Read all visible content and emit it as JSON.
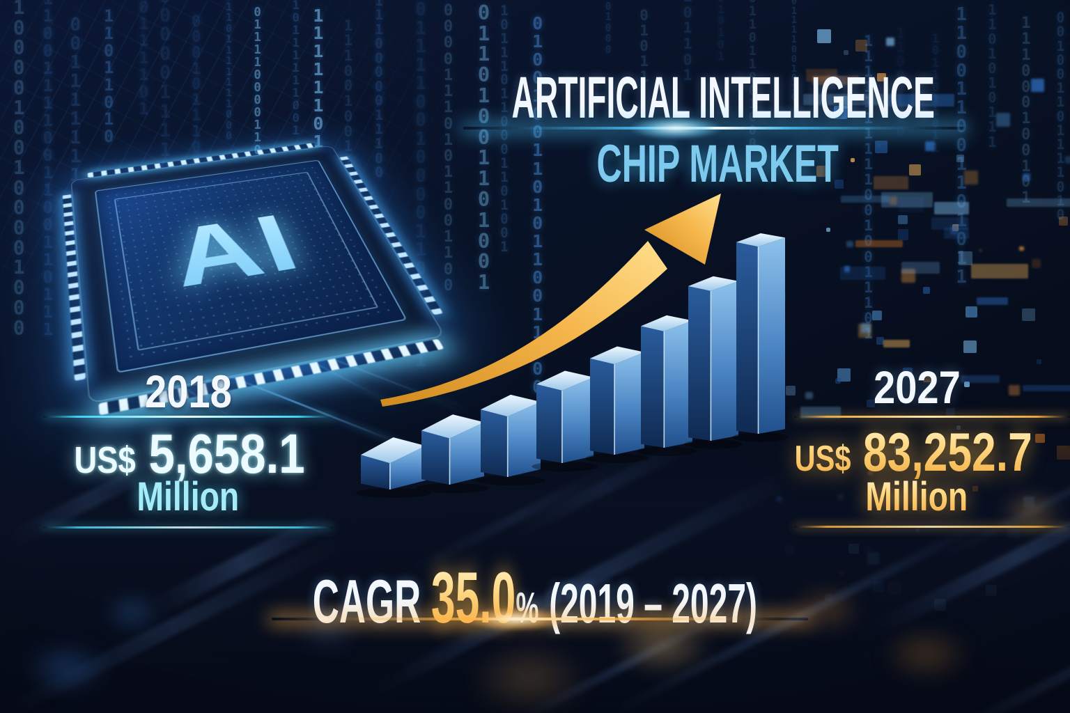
{
  "title": {
    "line1": "ARTIFICIAL INTELLIGENCE",
    "line2": "CHIP MARKET"
  },
  "start": {
    "year": "2018",
    "currency": "US$",
    "value": "5,658.1",
    "unit": "Million"
  },
  "end": {
    "year": "2027",
    "currency": "US$",
    "value": "83,252.7",
    "unit": "Million"
  },
  "cagr": {
    "label": "CAGR",
    "value": "35.0",
    "percent": "%",
    "period": "(2019 – 2027)"
  },
  "chip": {
    "label": "AI"
  },
  "background": {
    "binary_digits": "01"
  },
  "colors": {
    "background_navy": "#081225",
    "title_white": "#f3f8fe",
    "title_cyan": "#7ec9ee",
    "stat_cyan": "#a6ecf8",
    "stat_gold": "#ffd985",
    "arrow_gold": "#f2b04a",
    "bar_front_top": "#8fc6ee",
    "bar_front_bottom": "#1d4276",
    "bar_side_dark": "#0f2a52",
    "bar_top_light": "#e8f4fd"
  },
  "chart_data": {
    "type": "bar",
    "title": "Artificial Intelligence Chip Market",
    "unit": "US$ Million",
    "known_points": {
      "2018": 5658.1,
      "2027": 83252.7
    },
    "cagr_percent": 35.0,
    "cagr_period": "2019 - 2027",
    "legend_position": "none",
    "grid": false,
    "bars": {
      "count": 8,
      "relative_heights": [
        0.26,
        0.35,
        0.41,
        0.46,
        0.54,
        0.66,
        0.82,
        1.0
      ]
    },
    "annotations": [
      "upward gold growth arrow over bars"
    ]
  }
}
